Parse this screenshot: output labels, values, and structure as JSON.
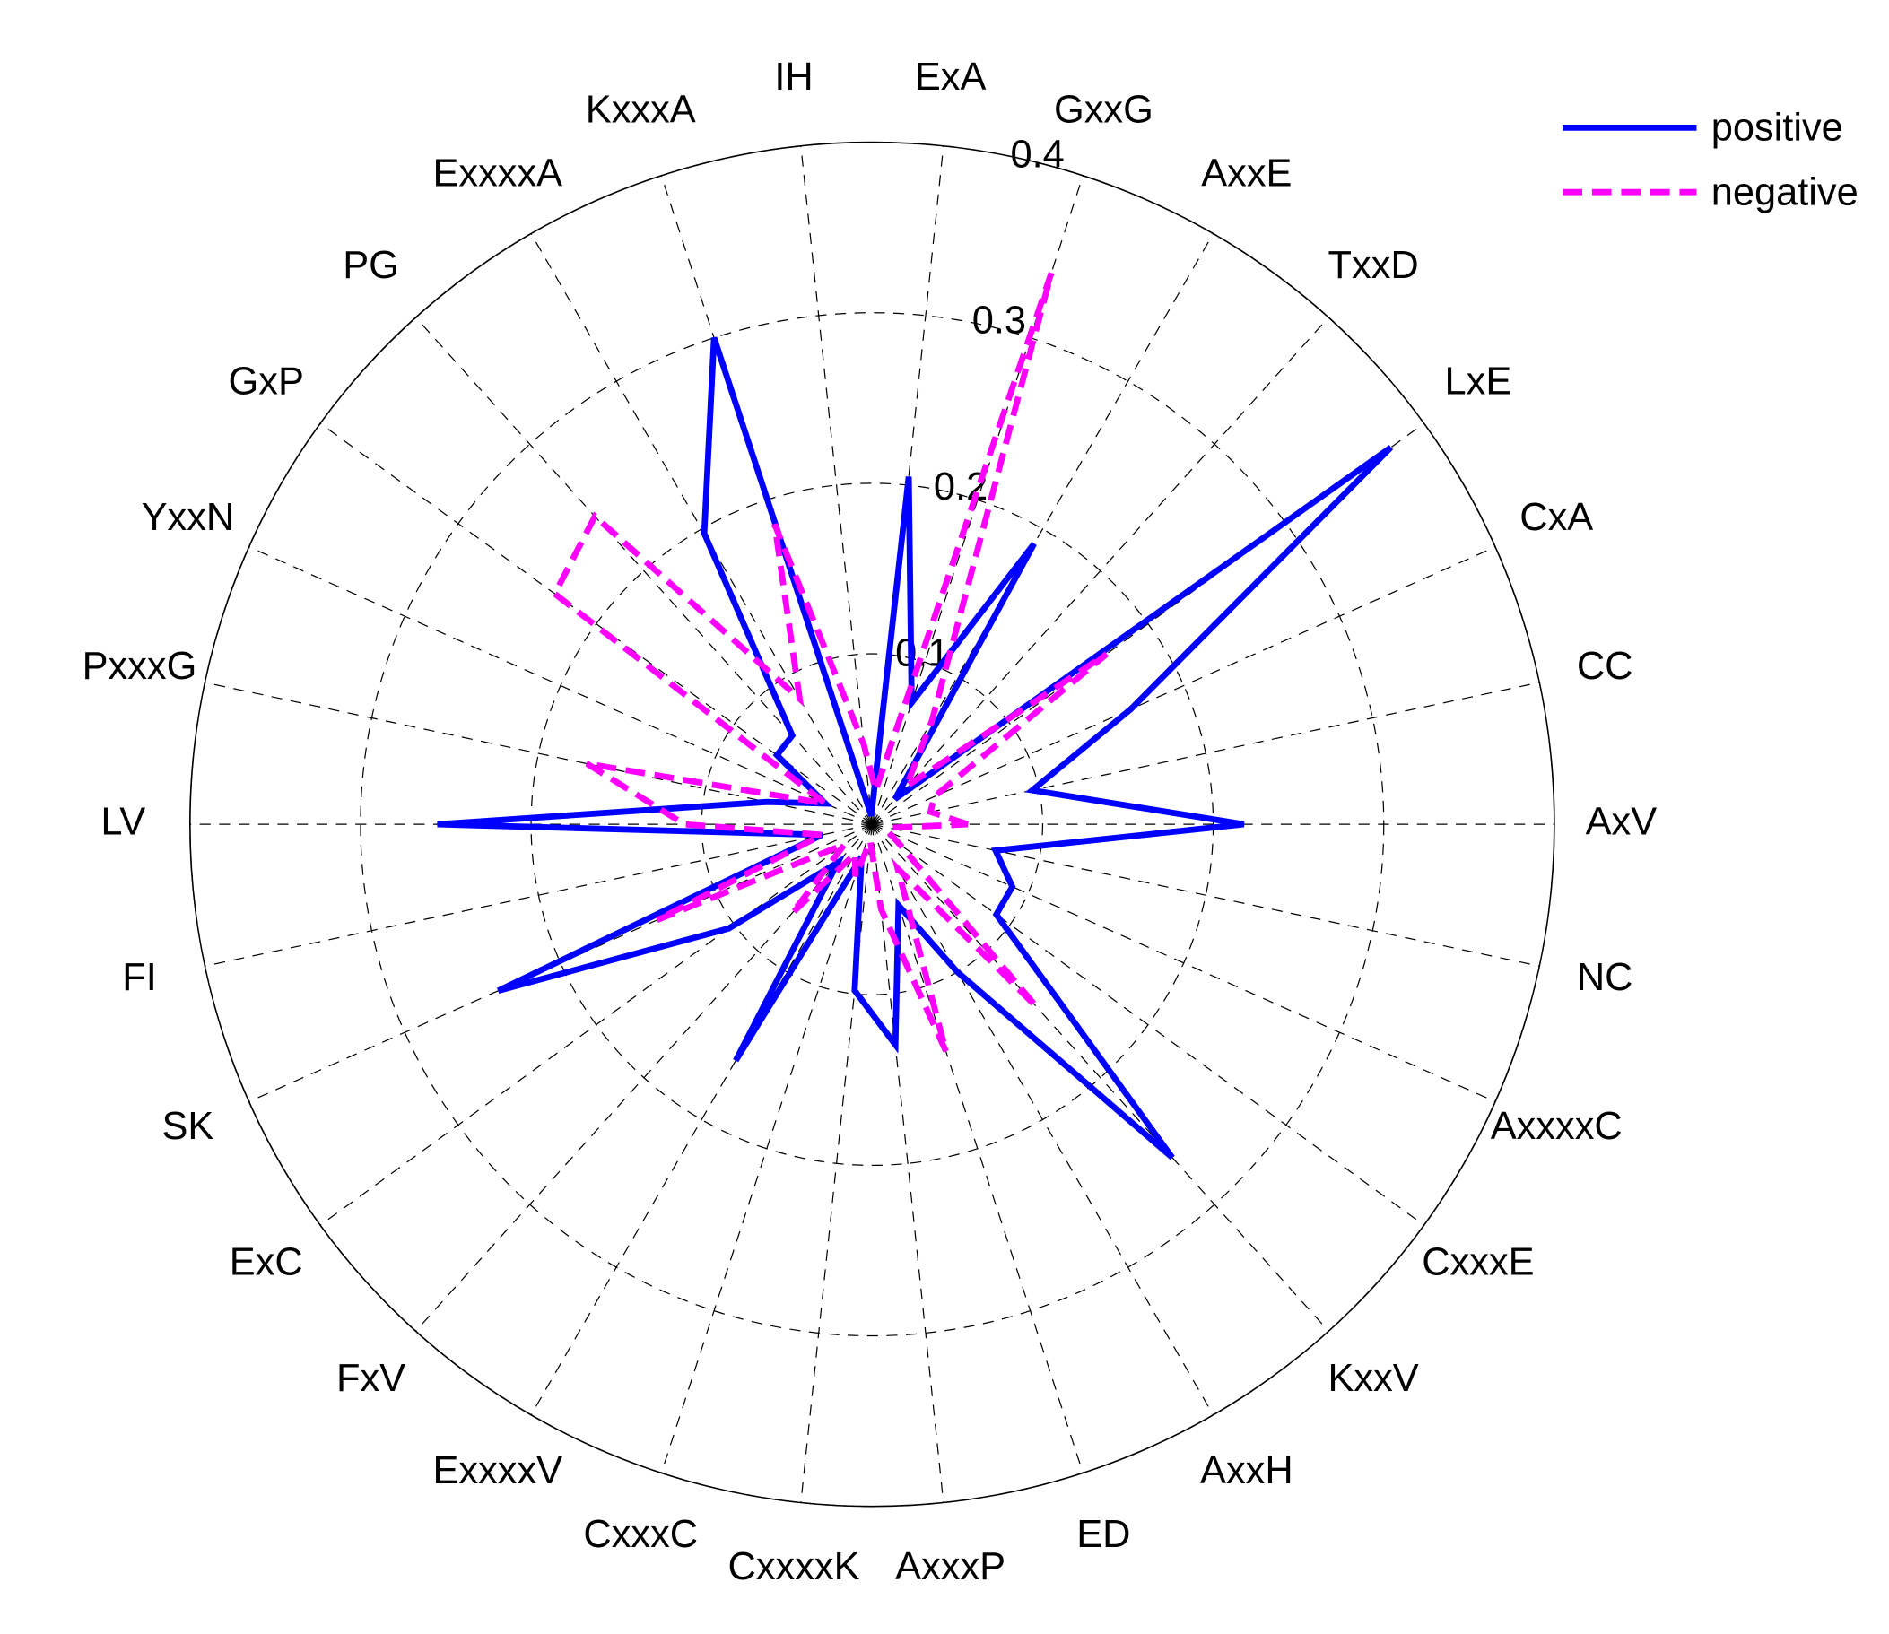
{
  "chart_data": {
    "type": "radar",
    "categories": [
      "AxV",
      "CC",
      "CxA",
      "LxE",
      "TxxD",
      "AxxE",
      "GxxG",
      "ExA",
      "IH",
      "KxxxA",
      "ExxxxA",
      "PG",
      "GxP",
      "YxxN",
      "PxxxG",
      "LV",
      "FI",
      "SK",
      "ExC",
      "FxV",
      "ExxxxV",
      "CxxxC",
      "CxxxxK",
      "AxxxP",
      "ED",
      "AxxH",
      "KxxV",
      "CxxxE",
      "AxxxxC",
      "NC"
    ],
    "series": [
      {
        "name": "positive",
        "color": "#0000ff",
        "dash": "solid",
        "values": [
          0.218,
          0.096,
          0.166,
          0.376,
          0.02,
          0.19,
          0.075,
          0.205,
          0.005,
          0.3,
          0.197,
          0.07,
          0.069,
          0.03,
          0.063,
          0.255,
          0.03,
          0.24,
          0.104,
          0.03,
          0.16,
          0.02,
          0.098,
          0.13,
          0.05,
          0.1,
          0.263,
          0.09,
          0.09,
          0.074
        ]
      },
      {
        "name": "negative",
        "color": "#ff00ff",
        "dash": "dashed",
        "values": [
          0.056,
          0.035,
          0.04,
          0.17,
          0.03,
          0.07,
          0.34,
          0.02,
          0.047,
          0.185,
          0.085,
          0.243,
          0.23,
          0.03,
          0.171,
          0.11,
          0.03,
          0.138,
          0.02,
          0.07,
          0.02,
          0.032,
          0.01,
          0.05,
          0.14,
          0.03,
          0.144,
          0.02,
          0.01,
          0.01
        ]
      }
    ],
    "rlim": [
      0,
      0.4
    ],
    "rticks": [
      0.1,
      0.2,
      0.3,
      0.4
    ],
    "legend": "upper right"
  }
}
